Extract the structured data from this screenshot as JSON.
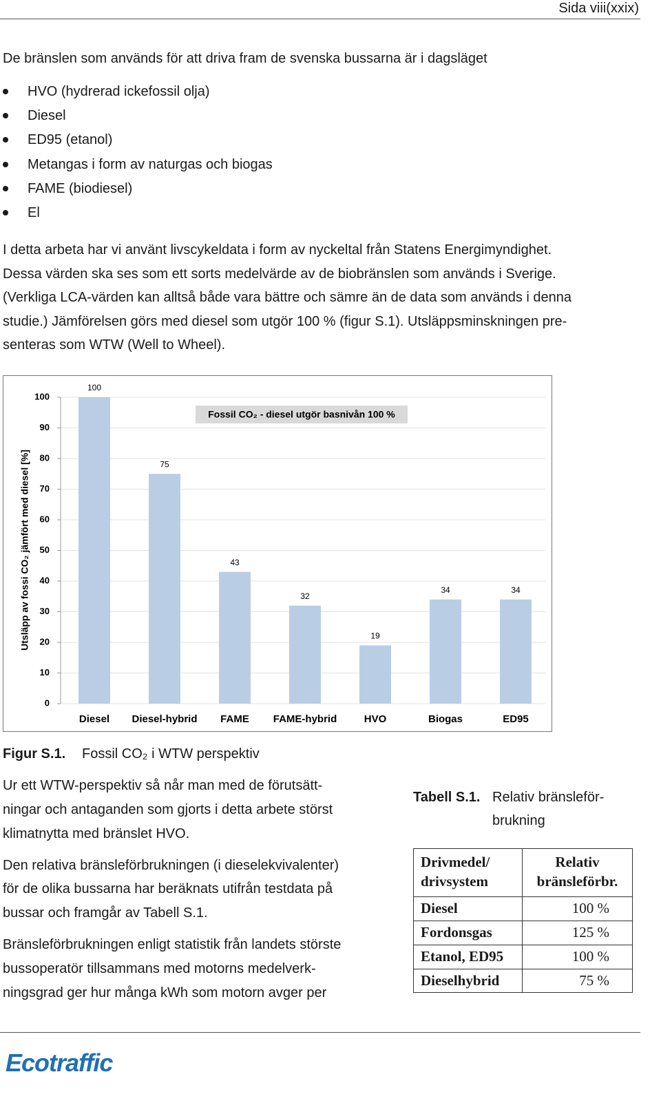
{
  "header": {
    "page": "Sida viii(xxix)"
  },
  "intro": "De bränslen som används för att driva fram de svenska bussarna är i dagsläget",
  "bullets": [
    "HVO (hydrerad ickefossil olja)",
    "Diesel",
    "ED95 (etanol)",
    "Metangas i form av naturgas och biogas",
    "FAME (biodiesel)",
    "El"
  ],
  "paragraph": [
    "I detta arbeta har vi använt livscykeldata i form av nyckeltal från Statens Energimyndighet.",
    "Dessa värden ska ses som ett sorts medelvärde av de biobränslen som används i Sverige.",
    "(Verkliga LCA-värden kan alltså både vara bättre och sämre än de data som används i denna",
    "studie.) Jämförelsen görs med diesel som utgör 100 % (figur S.1). Utsläppsminskningen pre-",
    "senteras som WTW (Well to Wheel)."
  ],
  "chart_data": {
    "type": "bar",
    "ylabel": "Utsläpp av fossi CO₂ jämfört med diesel [%]",
    "annotation": "Fossil CO₂ - diesel utgör basnivån 100 %",
    "categories": [
      "Diesel",
      "Diesel-hybrid",
      "FAME",
      "FAME-hybrid",
      "HVO",
      "Biogas",
      "ED95"
    ],
    "values": [
      100,
      75,
      43,
      32,
      19,
      34,
      34
    ],
    "color": "#b9cde5",
    "ylim": [
      0,
      100
    ],
    "yticks": [
      0,
      10,
      20,
      30,
      40,
      50,
      60,
      70,
      80,
      90,
      100
    ],
    "grid": true
  },
  "figure_caption": {
    "label": "Figur S.1.",
    "text": "Fossil CO₂ i WTW perspektiv"
  },
  "left_paragraphs": [
    [
      "Ur ett WTW-perspektiv så når man med de förutsätt-",
      "ningar och antaganden som gjorts i detta arbete störst",
      "klimatnytta med bränslet HVO."
    ],
    [
      "Den relativa bränsleförbrukningen (i dieselekvivalenter)",
      "för de olika bussarna har beräknats utifrån testdata på",
      "bussar och framgår av Tabell S.1."
    ],
    [
      "Bränsleförbrukningen enligt statistik från landets störste",
      "bussoperatör tillsammans med motorns medelverk-",
      "ningsgrad ger hur många kWh som motorn avger per"
    ]
  ],
  "table_caption": {
    "label": "Tabell S.1.",
    "text": [
      "Relativ bränsleför-",
      "brukning"
    ]
  },
  "table": {
    "header": [
      [
        "Drivmedel/",
        "drivsystem"
      ],
      [
        "Relativ",
        "bränsleförbr."
      ]
    ],
    "rows": [
      [
        "Diesel",
        "100 %"
      ],
      [
        "Fordonsgas",
        "125 %"
      ],
      [
        "Etanol, ED95",
        "100 %"
      ],
      [
        "Dieselhybrid",
        "75 %"
      ]
    ]
  },
  "footer": {
    "logo": "Ecotraffic"
  }
}
